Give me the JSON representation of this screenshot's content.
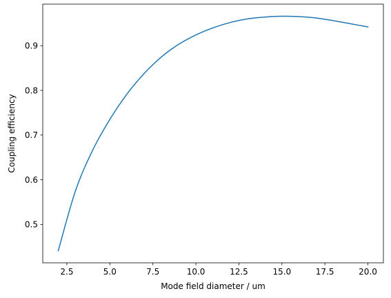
{
  "chart_data": {
    "type": "line",
    "xlabel": "Mode field diameter / um",
    "ylabel": "Coupling efficiency",
    "xlim": [
      1.1,
      20.9
    ],
    "ylim": [
      0.414,
      0.993
    ],
    "xticks": [
      2.5,
      5.0,
      7.5,
      10.0,
      12.5,
      15.0,
      17.5,
      20.0
    ],
    "xtick_labels": [
      "2.5",
      "5.0",
      "7.5",
      "10.0",
      "12.5",
      "15.0",
      "17.5",
      "20.0"
    ],
    "yticks": [
      0.5,
      0.6,
      0.7,
      0.8,
      0.9
    ],
    "ytick_labels": [
      "0.5",
      "0.6",
      "0.7",
      "0.8",
      "0.9"
    ],
    "grid": false,
    "series": [
      {
        "color": "#1f77b4",
        "x": [
          2,
          3,
          4,
          5,
          6,
          7,
          8,
          9,
          10,
          11,
          12,
          13,
          14,
          15,
          16,
          17,
          18,
          19,
          20
        ],
        "y": [
          0.441,
          0.575,
          0.666,
          0.735,
          0.792,
          0.838,
          0.875,
          0.903,
          0.924,
          0.94,
          0.952,
          0.96,
          0.964,
          0.966,
          0.965,
          0.962,
          0.956,
          0.949,
          0.942
        ]
      }
    ]
  }
}
